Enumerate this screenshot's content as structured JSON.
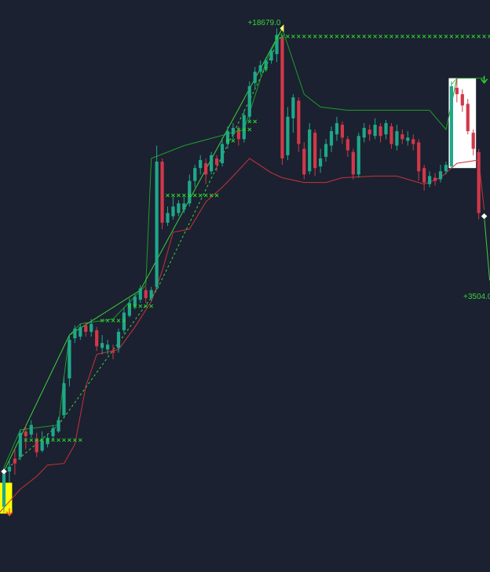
{
  "colors": {
    "background": "#1b2130",
    "bull": "#1fa88a",
    "bear": "#d1384a",
    "upper_band": "#1f9b2a",
    "lower_band": "#c8323a",
    "marker": "#2ed42e",
    "label": "#3cd13c",
    "trend": "#3cd13c",
    "highlight_yellow": "#ffff00",
    "highlight_white": "#ffffff"
  },
  "annotations": {
    "high_label": "+18679.0",
    "low_label": "+3504.0"
  },
  "chart_data": {
    "type": "candlestick",
    "title": "",
    "xlabel": "",
    "ylabel": "",
    "ylim": [
      3504,
      18679
    ],
    "grid": false,
    "candles": [
      [
        3750,
        4850,
        3570,
        4980
      ],
      [
        4850,
        5000,
        4500,
        5200
      ],
      [
        5250,
        5100,
        4750,
        5550
      ],
      [
        5300,
        6050,
        5200,
        6150
      ],
      [
        6100,
        5950,
        5550,
        6300
      ],
      [
        6000,
        6300,
        5900,
        6450
      ],
      [
        5850,
        5450,
        5300,
        6050
      ],
      [
        5500,
        5800,
        5450,
        6100
      ],
      [
        5700,
        5900,
        5600,
        6000
      ],
      [
        5950,
        6200,
        5850,
        6300
      ],
      [
        6100,
        6450,
        6050,
        6550
      ],
      [
        6600,
        7600,
        6500,
        7800
      ],
      [
        7750,
        8950,
        7500,
        9100
      ],
      [
        9000,
        9300,
        8850,
        9400
      ],
      [
        9050,
        9350,
        8950,
        9450
      ],
      [
        9400,
        9200,
        9050,
        9500
      ],
      [
        9200,
        9450,
        9050,
        9600
      ],
      [
        9250,
        8750,
        8600,
        9350
      ],
      [
        8700,
        8850,
        8500,
        9100
      ],
      [
        8650,
        8800,
        8500,
        8950
      ],
      [
        8600,
        8550,
        8350,
        8800
      ],
      [
        8700,
        9200,
        8550,
        9300
      ],
      [
        9250,
        9800,
        9150,
        9950
      ],
      [
        9700,
        10100,
        9650,
        10250
      ],
      [
        10000,
        10300,
        9900,
        10400
      ],
      [
        10200,
        10550,
        10100,
        10650
      ],
      [
        10500,
        10250,
        10100,
        10600
      ],
      [
        10250,
        10500,
        10150,
        10600
      ],
      [
        10600,
        14500,
        10500,
        15000
      ],
      [
        14500,
        12600,
        12400,
        14600
      ],
      [
        12600,
        12900,
        12500,
        13100
      ],
      [
        12800,
        13100,
        12700,
        13400
      ],
      [
        12900,
        13200,
        12800,
        13300
      ],
      [
        13000,
        13200,
        12900,
        13400
      ],
      [
        13200,
        13900,
        13100,
        14100
      ],
      [
        13900,
        14300,
        13700,
        14400
      ],
      [
        14300,
        14550,
        14100,
        14700
      ],
      [
        14450,
        14100,
        13800,
        14600
      ],
      [
        14200,
        14700,
        14100,
        14800
      ],
      [
        14600,
        14400,
        14200,
        14700
      ],
      [
        14450,
        15050,
        14350,
        15250
      ],
      [
        15050,
        15450,
        14900,
        15600
      ],
      [
        15350,
        15550,
        15200,
        15700
      ],
      [
        15450,
        15200,
        15000,
        15600
      ],
      [
        15200,
        15950,
        15100,
        16100
      ],
      [
        15900,
        16850,
        15800,
        17000
      ],
      [
        16950,
        17300,
        16800,
        17450
      ],
      [
        17300,
        17500,
        17200,
        17650
      ],
      [
        17400,
        17650,
        17300,
        17750
      ],
      [
        17650,
        17950,
        17550,
        18050
      ],
      [
        17850,
        18450,
        17600,
        18650
      ],
      [
        18350,
        14600,
        14400,
        18400
      ],
      [
        14700,
        15900,
        14550,
        16200
      ],
      [
        15850,
        16500,
        15400,
        16600
      ],
      [
        16400,
        15050,
        14800,
        16500
      ],
      [
        14900,
        14100,
        13950,
        15100
      ],
      [
        14200,
        15500,
        14100,
        15700
      ],
      [
        15400,
        14300,
        14050,
        15500
      ],
      [
        14350,
        14600,
        14150,
        14900
      ],
      [
        14650,
        15050,
        14500,
        15200
      ],
      [
        15000,
        15450,
        14800,
        15600
      ],
      [
        15350,
        15700,
        15150,
        15900
      ],
      [
        15650,
        15250,
        15050,
        15750
      ],
      [
        15200,
        14850,
        14650,
        15300
      ],
      [
        14800,
        14100,
        13950,
        14900
      ],
      [
        14100,
        15300,
        14000,
        15400
      ],
      [
        15250,
        15550,
        15100,
        15700
      ],
      [
        15500,
        15350,
        15150,
        15650
      ],
      [
        15300,
        15650,
        15200,
        15850
      ],
      [
        15600,
        15300,
        15100,
        15700
      ],
      [
        15350,
        15700,
        15200,
        15800
      ],
      [
        15600,
        15050,
        14900,
        15700
      ],
      [
        15000,
        15450,
        14850,
        15650
      ],
      [
        15350,
        15200,
        15050,
        15500
      ],
      [
        15150,
        15250,
        15000,
        15450
      ],
      [
        15200,
        15050,
        14850,
        15350
      ],
      [
        15100,
        14200,
        13900,
        15200
      ],
      [
        14300,
        13850,
        13600,
        14400
      ],
      [
        13800,
        14050,
        13700,
        14200
      ],
      [
        14000,
        13900,
        13750,
        14150
      ],
      [
        13950,
        14200,
        13850,
        14400
      ],
      [
        14200,
        14400,
        14100,
        14500
      ],
      [
        14350,
        16850,
        14300,
        17000
      ],
      [
        16800,
        16600,
        16350,
        17100
      ],
      [
        16600,
        16250,
        16050,
        16750
      ],
      [
        16300,
        15450,
        15350,
        16450
      ],
      [
        15400,
        14900,
        14700,
        15500
      ],
      [
        14800,
        12900,
        12700,
        14900
      ]
    ],
    "upper_band": [
      [
        0,
        4980
      ],
      [
        3,
        6150
      ],
      [
        10,
        6300
      ],
      [
        11,
        7800
      ],
      [
        12,
        9100
      ],
      [
        14,
        9450
      ],
      [
        20,
        9600
      ],
      [
        26,
        10650
      ],
      [
        27,
        14600
      ],
      [
        33,
        15000
      ],
      [
        44,
        15500
      ],
      [
        48,
        17600
      ],
      [
        51,
        18650
      ],
      [
        55,
        16600
      ],
      [
        58,
        16200
      ],
      [
        63,
        16100
      ],
      [
        74,
        16100
      ],
      [
        78,
        16100
      ],
      [
        81,
        15500
      ],
      [
        83,
        17100
      ],
      [
        88,
        17100
      ]
    ],
    "lower_band": [
      [
        -1,
        3530
      ],
      [
        3,
        4300
      ],
      [
        6,
        4700
      ],
      [
        8,
        5050
      ],
      [
        11,
        5100
      ],
      [
        13,
        5700
      ],
      [
        15,
        7500
      ],
      [
        17,
        8500
      ],
      [
        21,
        8650
      ],
      [
        24,
        9350
      ],
      [
        27,
        10150
      ],
      [
        29,
        11100
      ],
      [
        31,
        12300
      ],
      [
        34,
        12400
      ],
      [
        37,
        13250
      ],
      [
        40,
        13700
      ],
      [
        42,
        14050
      ],
      [
        45,
        14600
      ],
      [
        49,
        14150
      ],
      [
        51,
        14000
      ],
      [
        55,
        13850
      ],
      [
        59,
        13850
      ],
      [
        62,
        14000
      ],
      [
        68,
        14050
      ],
      [
        72,
        14050
      ],
      [
        77,
        13800
      ],
      [
        80,
        14000
      ],
      [
        83,
        14450
      ],
      [
        87,
        14550
      ],
      [
        88,
        13000
      ]
    ],
    "resistance_markers": [
      [
        4,
        5830,
        11
      ],
      [
        18,
        9550,
        5
      ],
      [
        23,
        10000,
        5
      ],
      [
        30,
        13450,
        10
      ],
      [
        41,
        15150,
        2
      ],
      [
        43,
        15500,
        3
      ],
      [
        45,
        15750,
        2
      ],
      [
        48,
        17400,
        1
      ],
      [
        50,
        18350,
        1
      ],
      [
        51,
        18400,
        41
      ]
    ],
    "trend_lines": [
      [
        [
          0,
          4850
        ],
        [
          12,
          9100
        ],
        [
          25,
          10500
        ],
        [
          51,
          18650
        ]
      ],
      [
        [
          0,
          4850
        ],
        [
          10,
          6300
        ],
        [
          28,
          10500
        ],
        [
          51,
          18500
        ]
      ],
      [
        [
          82,
          16900
        ],
        [
          83,
          17100
        ]
      ],
      [
        [
          88,
          12800
        ],
        [
          89,
          10800
        ]
      ]
    ],
    "signals": [
      {
        "type": "buy",
        "index": 0,
        "price": 4850
      },
      {
        "type": "buy_arrow",
        "index": 1,
        "price": 3530
      },
      {
        "type": "peak",
        "index": 51,
        "price": 18650
      },
      {
        "type": "buy_arrow",
        "index": 88,
        "price": 17000
      },
      {
        "type": "sell",
        "index": 88,
        "price": 12800
      }
    ],
    "highlights": [
      {
        "color": "yellow",
        "from_index": -1.5,
        "to_index": 1.5,
        "price_top": 4500,
        "price_bottom": 3540
      },
      {
        "color": "white",
        "from_index": 81.5,
        "to_index": 86.5,
        "price_top": 17100,
        "price_bottom": 14300
      }
    ]
  }
}
